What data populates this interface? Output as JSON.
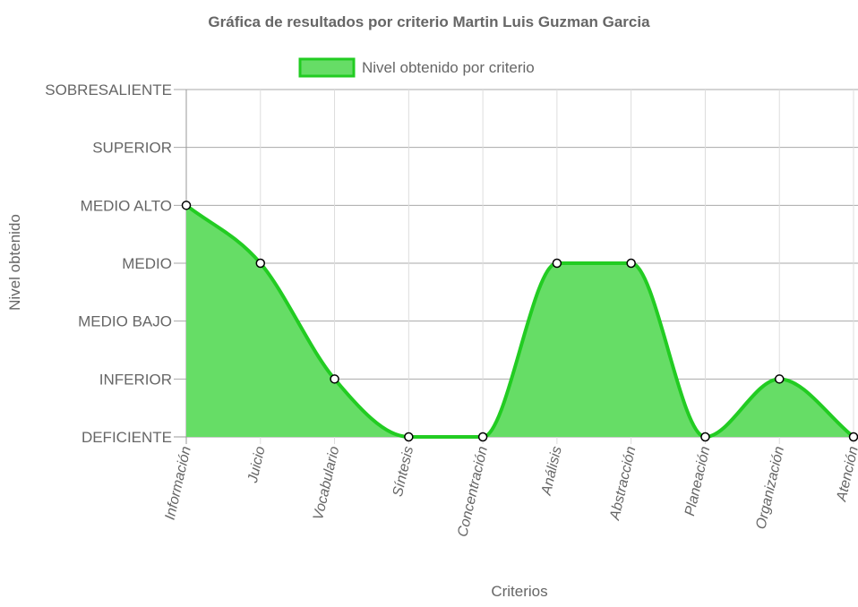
{
  "chart_data": {
    "type": "area",
    "title": "Gráfica de resultados por criterio Martin Luis Guzman Garcia",
    "xlabel": "Criterios",
    "ylabel": "Nivel obtenido",
    "y_levels": [
      "DEFICIENTE",
      "INFERIOR",
      "MEDIO BAJO",
      "MEDIO",
      "MEDIO ALTO",
      "SUPERIOR",
      "SOBRESALIENTE"
    ],
    "categories": [
      "Información",
      "Juicio",
      "Vocabulario",
      "Síntesis",
      "Concentración",
      "Análisis",
      "Abstracción",
      "Planeación",
      "Organización",
      "Atención"
    ],
    "series": [
      {
        "name": "Nivel obtenido por criterio",
        "values": [
          "MEDIO ALTO",
          "MEDIO",
          "INFERIOR",
          "DEFICIENTE",
          "DEFICIENTE",
          "MEDIO",
          "MEDIO",
          "DEFICIENTE",
          "INFERIOR",
          "DEFICIENTE"
        ],
        "fill_color": "#66dd66",
        "line_color": "#22cc22"
      }
    ],
    "grid": true,
    "legend_position": "top"
  }
}
